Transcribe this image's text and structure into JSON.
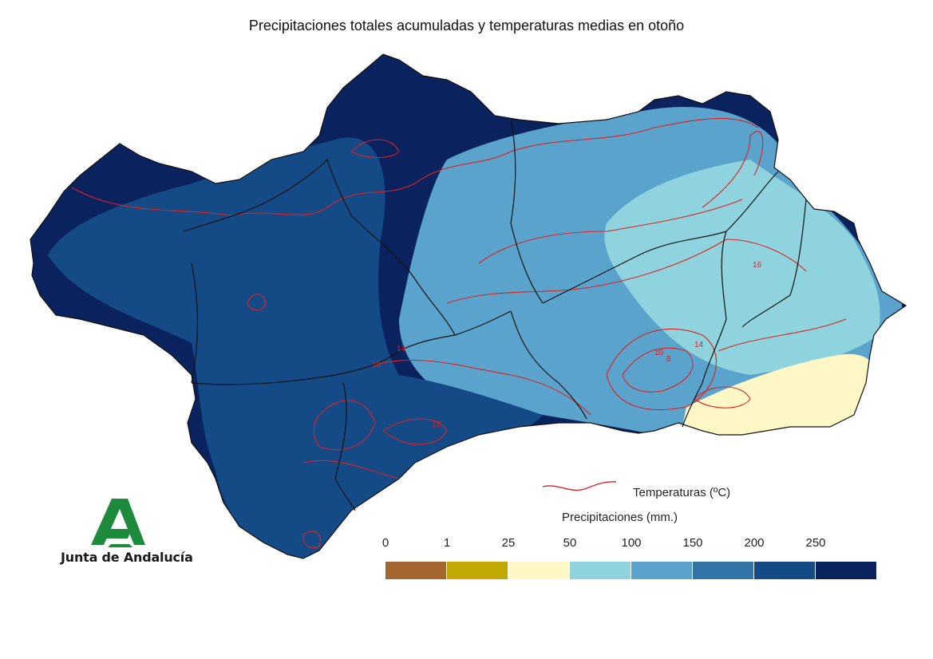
{
  "title": "Precipitaciones totales acumuladas y temperaturas medias en otoño",
  "legend": {
    "temperature_label": "Temperaturas (ºC)",
    "temperature_color": "#e02020",
    "precip_title": "Precipitaciones (mm.)",
    "ticks": [
      "0",
      "1",
      "25",
      "50",
      "100",
      "150",
      "200",
      "250"
    ],
    "colors": [
      "#a5652f",
      "#c2a803",
      "#fff8c6",
      "#8ed3dd",
      "#5aa3cc",
      "#3374a8",
      "#144a86",
      "#0a225e"
    ]
  },
  "contour_labels": [
    "18",
    "14",
    "10",
    "8",
    "14",
    "16",
    "18"
  ],
  "logo": {
    "text": "Junta de Andalucía",
    "color": "#1e8a3c"
  }
}
